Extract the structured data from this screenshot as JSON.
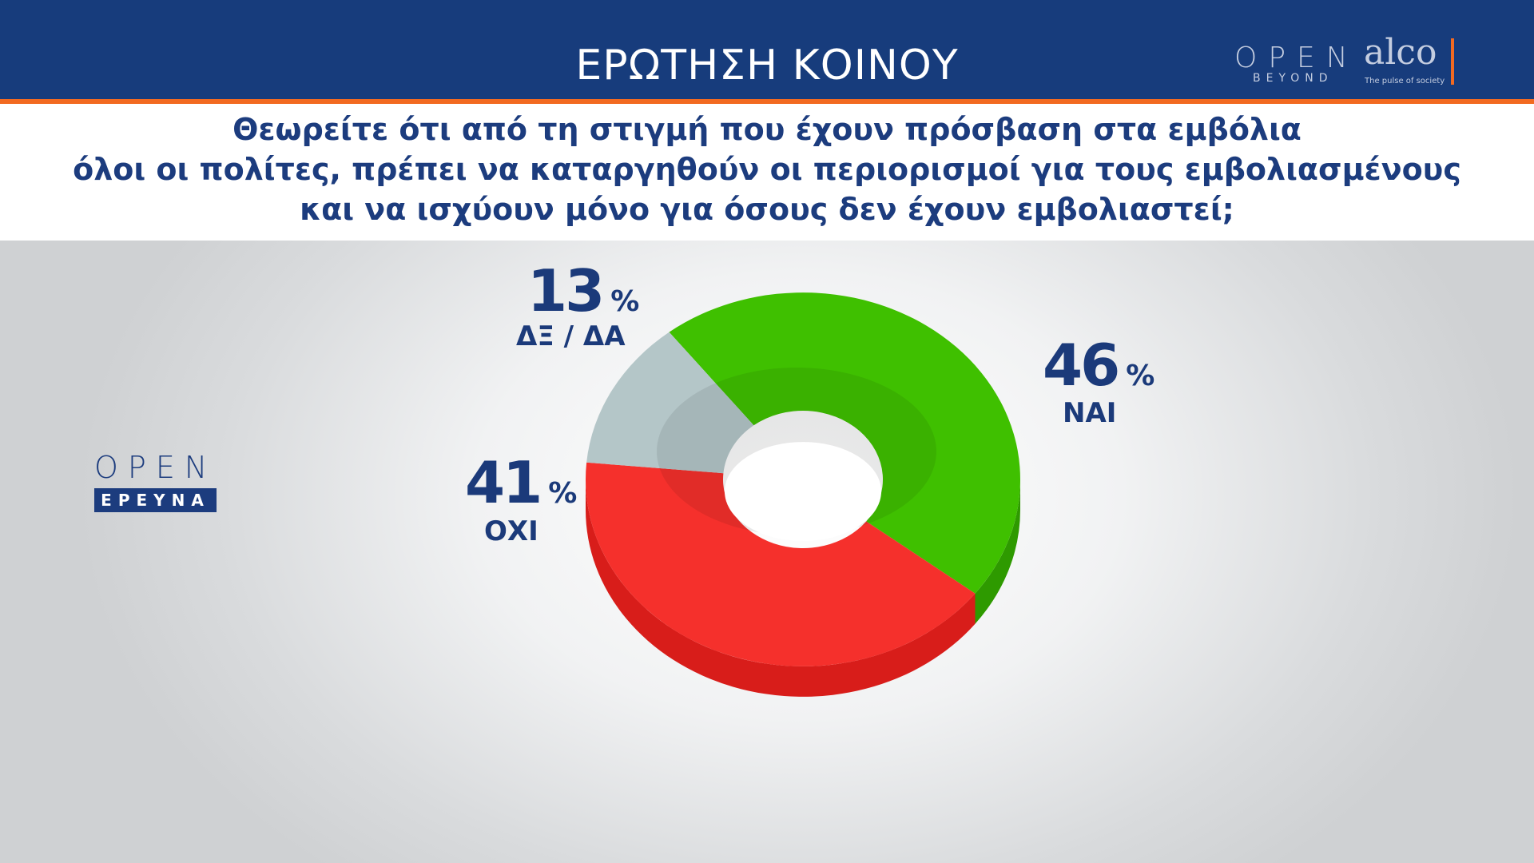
{
  "header": {
    "title": "ΕΡΩΤΗΣΗ ΚΟΙΝΟΥ",
    "logo_open": "OPEN",
    "logo_beyond": "BEYOND",
    "logo_alco": "alco",
    "logo_alco_tagline": "The pulse of society"
  },
  "question": {
    "lines": [
      "Θεωρείτε ότι από τη στιγμή που έχουν πρόσβαση στα εμβόλια",
      "όλοι οι πολίτες, πρέπει να καταργηθούν οι περιορισμοί για  τους εμβολιασμένους",
      "και να ισχύουν μόνο για όσους δεν έχουν εμβολιαστεί;"
    ]
  },
  "side_logo": {
    "open": "OPEN",
    "ereuna": "ΕΡΕΥΝΑ"
  },
  "chart_data": {
    "type": "pie",
    "donut": true,
    "categories": [
      "ΝΑΙ",
      "ΟΧΙ",
      "ΔΞ / ΔΑ"
    ],
    "values": [
      46,
      41,
      13
    ],
    "value_labels": [
      "46",
      "41",
      "13"
    ],
    "unit": "%",
    "colors": [
      "#3fc000",
      "#f5302c",
      "#b4c6c8"
    ],
    "title": ""
  }
}
